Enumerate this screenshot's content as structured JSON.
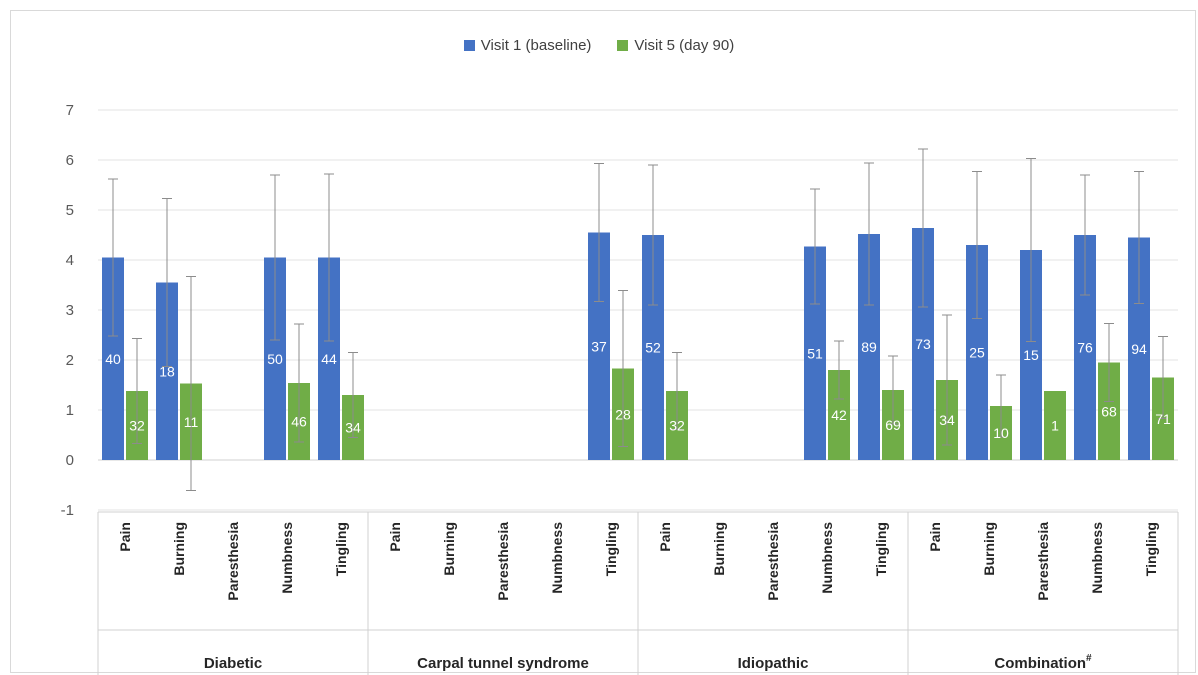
{
  "chart_data": {
    "type": "bar",
    "title": "",
    "xlabel": "",
    "ylabel": "",
    "ylim": [
      -1,
      7
    ],
    "yticks": [
      -1,
      0,
      1,
      2,
      3,
      4,
      5,
      6,
      7
    ],
    "grid": true,
    "legend_position": "top-center",
    "groups": [
      {
        "name": "Diabetic",
        "categories": [
          "Pain",
          "Burning",
          "Paresthesia",
          "Numbness",
          "Tingling"
        ]
      },
      {
        "name": "Carpal tunnel syndrome",
        "categories": [
          "Pain",
          "Burning",
          "Paresthesia",
          "Numbness",
          "Tingling"
        ]
      },
      {
        "name": "Idiopathic",
        "categories": [
          "Pain",
          "Burning",
          "Paresthesia",
          "Numbness",
          "Tingling"
        ]
      },
      {
        "name": "Combination",
        "name_suffix": "#",
        "categories": [
          "Pain",
          "Burning",
          "Paresthesia",
          "Numbness",
          "Tingling"
        ]
      }
    ],
    "series": [
      {
        "name": "Visit 1 (baseline)",
        "color": "#4472c4",
        "values": [
          4.05,
          3.55,
          null,
          4.05,
          4.05,
          null,
          null,
          null,
          null,
          4.55,
          4.5,
          null,
          null,
          4.27,
          4.52,
          4.64,
          4.3,
          4.2,
          4.5,
          4.45
        ],
        "error": [
          1.57,
          1.68,
          null,
          1.65,
          1.67,
          null,
          null,
          null,
          null,
          1.38,
          1.4,
          null,
          null,
          1.15,
          1.42,
          1.58,
          1.47,
          1.83,
          1.2,
          1.32
        ],
        "labels": [
          "40",
          "18",
          null,
          "50",
          "44",
          null,
          null,
          null,
          null,
          "37",
          "52",
          null,
          null,
          "51",
          "89",
          "73",
          "25",
          "15",
          "76",
          "94"
        ]
      },
      {
        "name": "Visit 5 (day 90)",
        "color": "#70ad47",
        "values": [
          1.38,
          1.53,
          null,
          1.54,
          1.3,
          null,
          null,
          null,
          null,
          1.83,
          1.38,
          null,
          null,
          1.8,
          1.4,
          1.6,
          1.08,
          1.38,
          1.95,
          1.65
        ],
        "error": [
          1.05,
          2.14,
          null,
          1.18,
          0.85,
          null,
          null,
          null,
          null,
          1.56,
          0.77,
          null,
          null,
          0.58,
          0.68,
          1.3,
          0.62,
          0,
          0.78,
          0.82
        ],
        "labels": [
          "32",
          "11",
          null,
          "46",
          "34",
          null,
          null,
          null,
          null,
          "28",
          "32",
          null,
          null,
          "42",
          "69",
          "34",
          "10",
          "1",
          "68",
          "71"
        ]
      }
    ]
  }
}
